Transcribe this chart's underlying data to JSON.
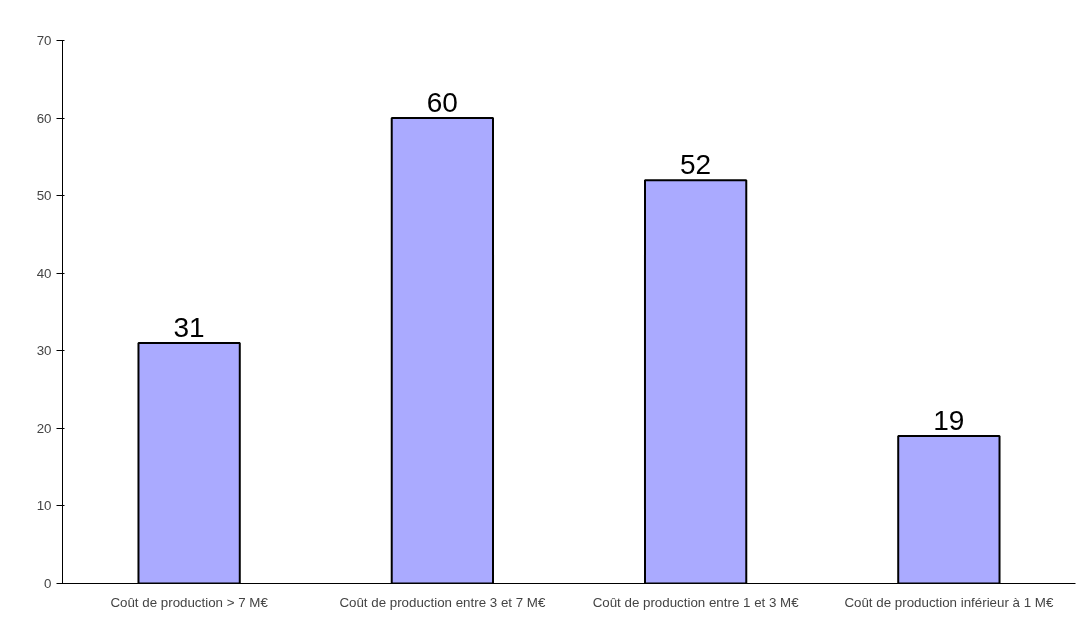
{
  "chart_data": {
    "type": "bar",
    "categories": [
      "Coût de production > 7 M€",
      "Coût de production entre 3 et 7 M€",
      "Coût de production entre 1 et 3 M€",
      "Coût de production inférieur à 1 M€"
    ],
    "values": [
      31,
      60,
      52,
      19
    ],
    "color": "#aaaaff",
    "ylim": [
      0,
      70
    ],
    "yticks": [
      0,
      10,
      20,
      30,
      40,
      50,
      60,
      70
    ],
    "grid": false,
    "data_labels": true
  }
}
